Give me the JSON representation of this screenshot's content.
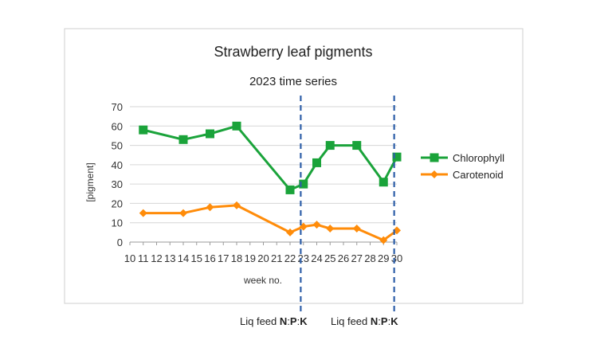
{
  "chart_data": {
    "type": "line",
    "title": "Strawberry leaf pigments",
    "subtitle": "2023 time series",
    "xlabel": "week no.",
    "ylabel": "[pigment]",
    "xlim": [
      10,
      30
    ],
    "ylim": [
      0,
      70
    ],
    "x_ticks": [
      "10",
      "11",
      "12",
      "13",
      "14",
      "15",
      "16",
      "17",
      "18",
      "19",
      "20",
      "21",
      "22",
      "23",
      "24",
      "25",
      "26",
      "27",
      "28",
      "29",
      "30"
    ],
    "y_ticks": [
      "0",
      "10",
      "20",
      "30",
      "40",
      "50",
      "60",
      "70"
    ],
    "grid": "horizontal",
    "legend_position": "right",
    "series": [
      {
        "name": "Chlorophyll",
        "color": "#1aa33a",
        "marker": "square",
        "points": [
          [
            11,
            58
          ],
          [
            14,
            53
          ],
          [
            16,
            56
          ],
          [
            18,
            60
          ],
          [
            22,
            27
          ],
          [
            23,
            30
          ],
          [
            24,
            41
          ],
          [
            25,
            50
          ],
          [
            27,
            50
          ],
          [
            29,
            31
          ],
          [
            30,
            44
          ]
        ]
      },
      {
        "name": "Carotenoid",
        "color": "#ff8c0a",
        "marker": "diamond",
        "points": [
          [
            11,
            15
          ],
          [
            14,
            15
          ],
          [
            16,
            18
          ],
          [
            18,
            19
          ],
          [
            22,
            5
          ],
          [
            23,
            8
          ],
          [
            24,
            9
          ],
          [
            25,
            7
          ],
          [
            27,
            7
          ],
          [
            29,
            1
          ],
          [
            30,
            6
          ]
        ]
      }
    ],
    "reference_lines": [
      {
        "x": 22.8,
        "style": "dashed",
        "color": "#2e5fa8"
      },
      {
        "x": 29.8,
        "style": "dashed",
        "color": "#2e5fa8"
      }
    ],
    "annotations": [
      {
        "pre": "Liq feed ",
        "n": "N",
        "sep1": ":",
        "p": "P",
        "sep2": ":",
        "k": "K"
      },
      {
        "pre": "Liq feed ",
        "n": "N",
        "sep1": ":",
        "p": "P",
        "sep2": ":",
        "k": "K"
      }
    ]
  }
}
